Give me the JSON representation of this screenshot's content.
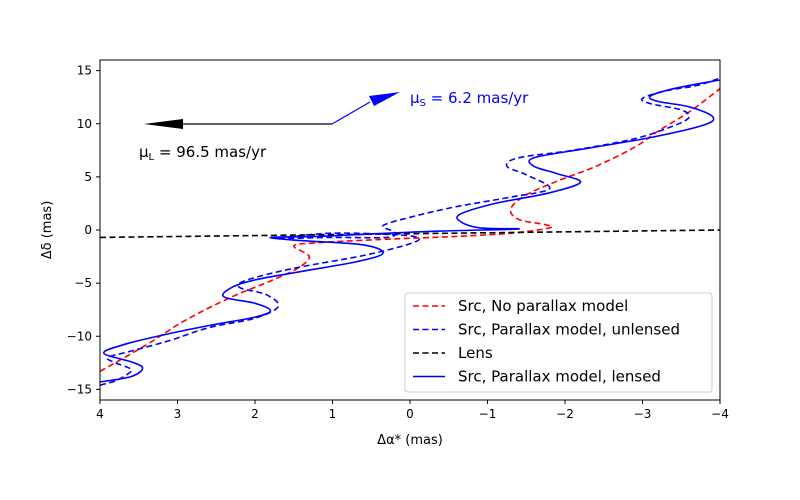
{
  "chart_data": {
    "type": "line",
    "xlabel": "Δα* (mas)",
    "ylabel": "Δδ (mas)",
    "xlim": [
      4,
      -4
    ],
    "ylim": [
      -16,
      16
    ],
    "x_inverted": true,
    "grid": false,
    "legend_position": "lower-right",
    "xticks": [
      {
        "value": 4,
        "label": "4"
      },
      {
        "value": 3,
        "label": "3"
      },
      {
        "value": 2,
        "label": "2"
      },
      {
        "value": 1,
        "label": "1"
      },
      {
        "value": 0,
        "label": "0"
      },
      {
        "value": -1,
        "label": "−1"
      },
      {
        "value": -2,
        "label": "−2"
      },
      {
        "value": -3,
        "label": "−3"
      },
      {
        "value": -4,
        "label": "−4"
      }
    ],
    "yticks": [
      {
        "value": 15,
        "label": "15"
      },
      {
        "value": 10,
        "label": "10"
      },
      {
        "value": 5,
        "label": "5"
      },
      {
        "value": 0,
        "label": "0"
      },
      {
        "value": -5,
        "label": "−5"
      },
      {
        "value": -10,
        "label": "−10"
      },
      {
        "value": -15,
        "label": "−15"
      }
    ],
    "series": [
      {
        "name": "Src, No parallax model",
        "color": "#ff0000",
        "dash": "dashed",
        "points": [
          [
            4.0,
            -13.3
          ],
          [
            3.4,
            -10.8
          ],
          [
            2.9,
            -8.5
          ],
          [
            2.3,
            -6.3
          ],
          [
            1.8,
            -4.8
          ],
          [
            1.45,
            -3.6
          ],
          [
            1.3,
            -2.5
          ],
          [
            1.5,
            -1.5
          ],
          [
            1.2,
            -1.2
          ],
          [
            0.4,
            -0.9
          ],
          [
            -0.6,
            -0.6
          ],
          [
            -1.3,
            -0.3
          ],
          [
            -1.8,
            0.2
          ],
          [
            -1.75,
            0.5
          ],
          [
            -1.4,
            1.0
          ],
          [
            -1.3,
            2.0
          ],
          [
            -1.5,
            3.3
          ],
          [
            -1.9,
            4.6
          ],
          [
            -2.4,
            6.0
          ],
          [
            -2.9,
            7.8
          ],
          [
            -3.2,
            9.3
          ],
          [
            -3.6,
            11.1
          ],
          [
            -4.0,
            13.3
          ]
        ]
      },
      {
        "name": "Src, Parallax model, unlensed",
        "color": "#0000ff",
        "dash": "dashed",
        "points": [
          [
            4.0,
            -14.6
          ],
          [
            3.8,
            -14.2
          ],
          [
            3.65,
            -13.6
          ],
          [
            3.6,
            -13.1
          ],
          [
            3.8,
            -12.5
          ],
          [
            3.9,
            -12.0
          ],
          [
            3.6,
            -11.4
          ],
          [
            3.1,
            -10.4
          ],
          [
            2.6,
            -9.2
          ],
          [
            2.0,
            -8.3
          ],
          [
            1.7,
            -7.2
          ],
          [
            1.85,
            -6.1
          ],
          [
            2.2,
            -5.4
          ],
          [
            2.1,
            -4.7
          ],
          [
            1.5,
            -3.6
          ],
          [
            0.6,
            -2.4
          ],
          [
            0.0,
            -1.3
          ],
          [
            -0.1,
            -0.7
          ],
          [
            0.3,
            -0.4
          ],
          [
            1.0,
            -0.3
          ],
          [
            1.5,
            -0.6
          ],
          [
            1.7,
            -0.8
          ],
          [
            1.0,
            -0.7
          ],
          [
            0.3,
            -0.7
          ],
          [
            0.2,
            -0.2
          ],
          [
            0.35,
            0.4
          ],
          [
            0.0,
            1.2
          ],
          [
            -0.6,
            2.2
          ],
          [
            -1.3,
            3.1
          ],
          [
            -1.8,
            3.9
          ],
          [
            -1.5,
            5.2
          ],
          [
            -1.25,
            6.0
          ],
          [
            -1.4,
            6.8
          ],
          [
            -2.1,
            7.5
          ],
          [
            -2.9,
            8.6
          ],
          [
            -3.4,
            9.8
          ],
          [
            -3.6,
            10.6
          ],
          [
            -3.5,
            11.3
          ],
          [
            -3.1,
            11.9
          ],
          [
            -3.0,
            12.4
          ],
          [
            -3.3,
            13.1
          ],
          [
            -3.7,
            13.6
          ],
          [
            -4.0,
            14.3
          ]
        ]
      },
      {
        "name": "Lens",
        "color": "#000000",
        "dash": "dashed",
        "points": [
          [
            4.0,
            -0.7
          ],
          [
            -4.0,
            0.0
          ]
        ]
      },
      {
        "name": "Src, Parallax model, lensed",
        "color": "#0000ff",
        "dash": "solid",
        "points": [
          [
            4.0,
            -14.3
          ],
          [
            3.6,
            -13.8
          ],
          [
            3.45,
            -13.0
          ],
          [
            3.6,
            -12.4
          ],
          [
            3.95,
            -11.6
          ],
          [
            3.7,
            -10.8
          ],
          [
            3.2,
            -9.9
          ],
          [
            2.6,
            -9.0
          ],
          [
            2.0,
            -8.2
          ],
          [
            1.8,
            -7.6
          ],
          [
            2.0,
            -6.9
          ],
          [
            2.4,
            -6.3
          ],
          [
            2.3,
            -5.4
          ],
          [
            2.0,
            -4.7
          ],
          [
            1.4,
            -3.9
          ],
          [
            0.7,
            -3.0
          ],
          [
            0.35,
            -2.2
          ],
          [
            0.6,
            -1.4
          ],
          [
            1.4,
            -1.0
          ],
          [
            1.8,
            -0.7
          ],
          [
            1.2,
            -0.6
          ],
          [
            0.6,
            -0.4
          ],
          [
            -0.4,
            -0.1
          ],
          [
            -1.4,
            0.1
          ],
          [
            -0.9,
            0.2
          ],
          [
            -0.65,
            0.8
          ],
          [
            -0.65,
            1.5
          ],
          [
            -1.1,
            2.5
          ],
          [
            -1.8,
            3.5
          ],
          [
            -2.2,
            4.5
          ],
          [
            -1.9,
            5.3
          ],
          [
            -1.6,
            6.0
          ],
          [
            -1.6,
            6.8
          ],
          [
            -2.3,
            7.7
          ],
          [
            -3.1,
            8.7
          ],
          [
            -3.8,
            9.9
          ],
          [
            -3.9,
            10.7
          ],
          [
            -3.6,
            11.6
          ],
          [
            -3.2,
            12.1
          ],
          [
            -3.1,
            12.6
          ],
          [
            -3.4,
            13.3
          ],
          [
            -3.9,
            14.0
          ],
          [
            -4.0,
            14.1
          ]
        ]
      }
    ],
    "annotations": {
      "lens_motion": {
        "label": "μ_L = 96.5 mas/yr",
        "color": "#000000"
      },
      "source_motion": {
        "label": "μ_S = 6.2 mas/yr",
        "color": "#0000ff"
      }
    }
  }
}
